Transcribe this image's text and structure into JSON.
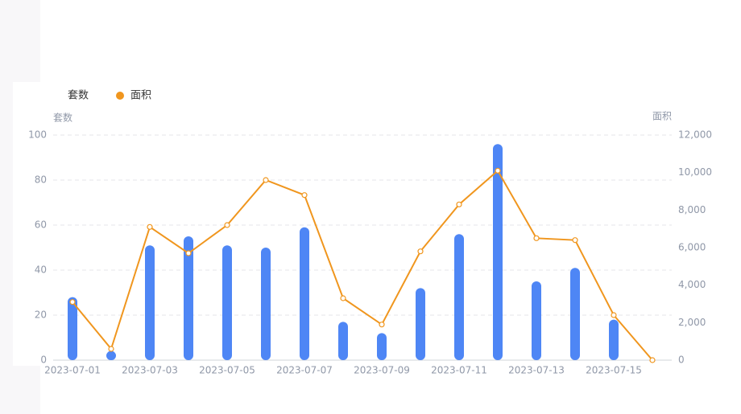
{
  "chart_data": {
    "type": "bar-line",
    "categories": [
      "2023-07-01",
      null,
      "2023-07-03",
      null,
      "2023-07-05",
      null,
      "2023-07-07",
      null,
      "2023-07-09",
      null,
      "2023-07-11",
      null,
      "2023-07-13",
      null,
      "2023-07-15",
      null
    ],
    "series": [
      {
        "name": "套数",
        "type": "bar",
        "color": "#4e86f5",
        "values": [
          28,
          4,
          51,
          55,
          51,
          50,
          59,
          17,
          12,
          32,
          56,
          96,
          35,
          41,
          18,
          0
        ]
      },
      {
        "name": "面积",
        "type": "line",
        "axis": "y2",
        "color": "#f0961e",
        "values": [
          3100,
          600,
          7100,
          5700,
          7200,
          9600,
          8800,
          3300,
          1900,
          5800,
          8300,
          10100,
          6500,
          6400,
          2400,
          0
        ]
      }
    ],
    "y_axis_label": "套数",
    "y2_axis_label": "面积",
    "ylim": [
      0,
      100
    ],
    "yticks": [
      0,
      20,
      40,
      60,
      80,
      100
    ],
    "y2lim": [
      0,
      12000
    ],
    "y2ticks": [
      0,
      {
        "value": 2000,
        "label": "2,000"
      },
      {
        "value": 4000,
        "label": "4,000"
      },
      {
        "value": 6000,
        "label": "6,000"
      },
      {
        "value": 8000,
        "label": "8,000"
      },
      {
        "value": 10000,
        "label": "10,000"
      },
      {
        "value": 12000,
        "label": "12,000"
      }
    ],
    "grid": true
  }
}
